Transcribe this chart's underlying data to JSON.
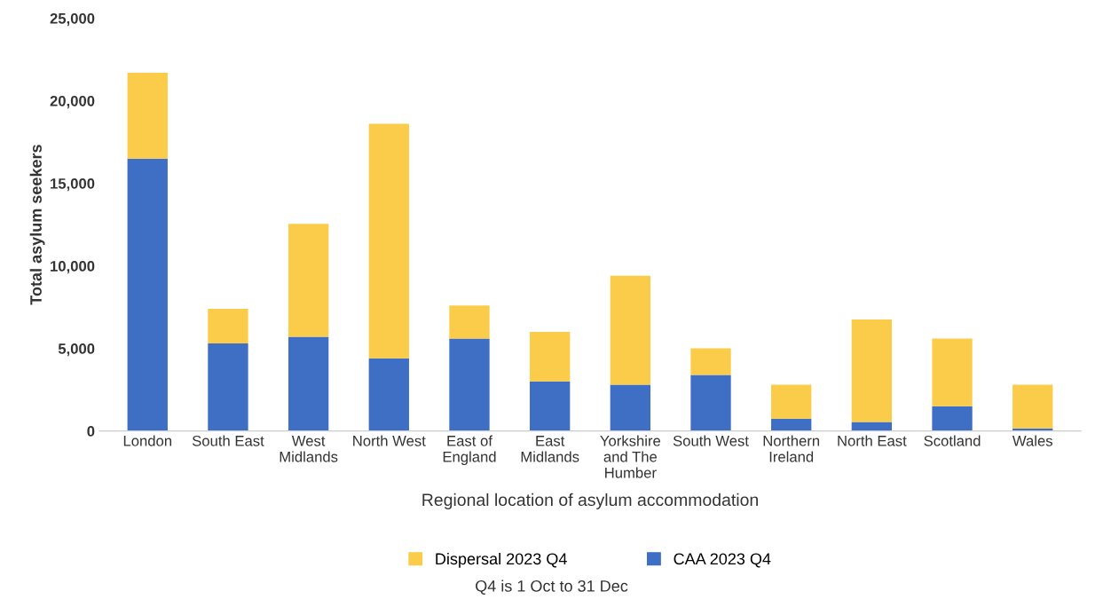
{
  "chart_data": {
    "type": "bar",
    "stacked": true,
    "xlabel": "Regional location of asylum accommodation",
    "ylabel": "Total asylum seekers",
    "categories": [
      "London",
      "South East",
      "West\nMidlands",
      "North West",
      "East of\nEngland",
      "East\nMidlands",
      "Yorkshire\nand The\nHumber",
      "South West",
      "Northern\nIreland",
      "North East",
      "Scotland",
      "Wales"
    ],
    "series": [
      {
        "name": "CAA 2023 Q4",
        "color": "#3f6fc4",
        "values": [
          16500,
          5300,
          5700,
          4400,
          5600,
          3000,
          2800,
          3400,
          750,
          550,
          1500,
          150
        ]
      },
      {
        "name": "Dispersal 2023 Q4",
        "color": "#fbcb4a",
        "values": [
          5200,
          2100,
          6850,
          14200,
          2000,
          3000,
          6600,
          1600,
          2050,
          6200,
          4100,
          2650
        ]
      }
    ],
    "ylim": [
      0,
      25000
    ],
    "yticks": [
      {
        "value": 0,
        "label": "0"
      },
      {
        "value": 5000,
        "label": "5,000"
      },
      {
        "value": 10000,
        "label": "10,000"
      },
      {
        "value": 15000,
        "label": "15,000"
      },
      {
        "value": 20000,
        "label": "20,000"
      },
      {
        "value": 25000,
        "label": "25,000"
      }
    ],
    "grid": false,
    "legend": "bottom",
    "annotations": [
      "Q4 is 1 Oct to 31 Dec"
    ]
  }
}
